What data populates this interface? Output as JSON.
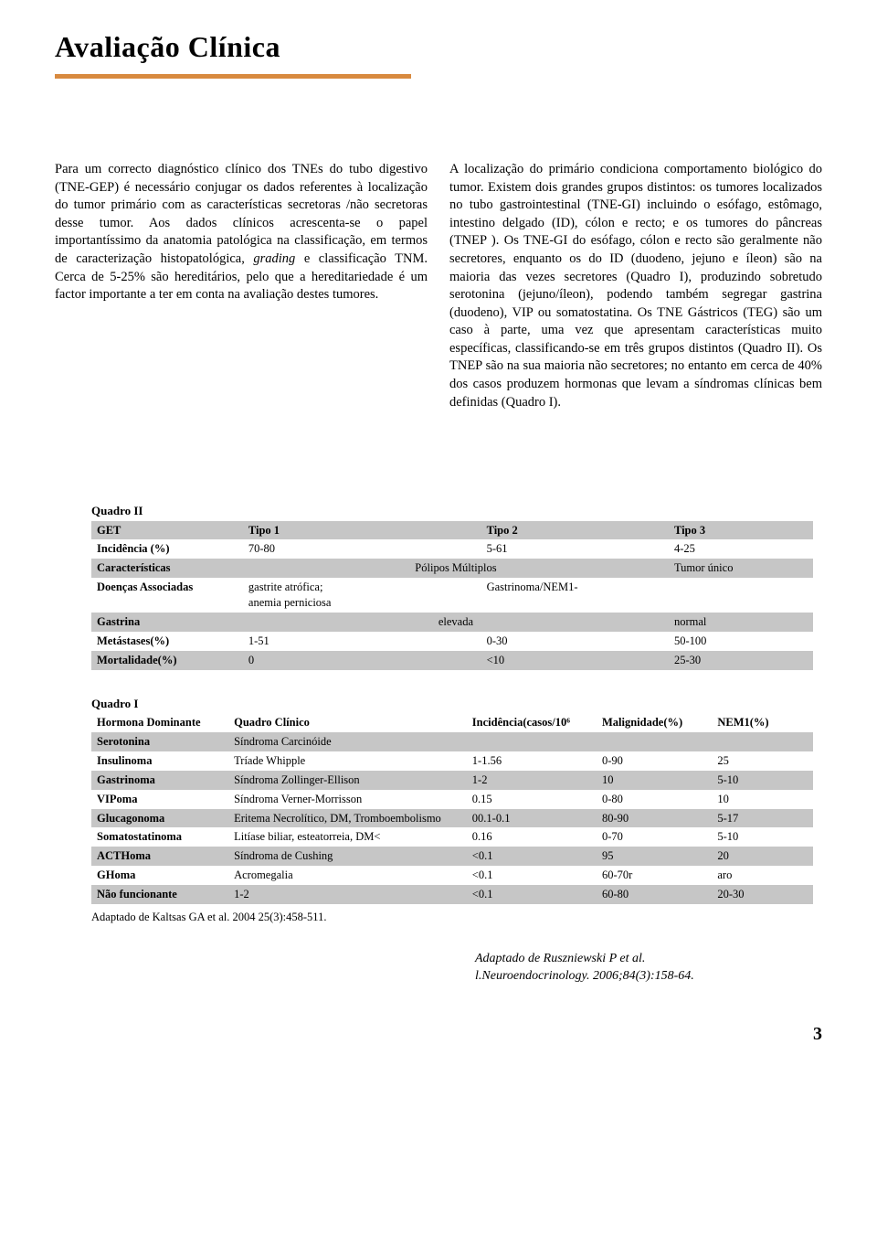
{
  "title": "Avaliação Clínica",
  "title_rule_color": "#d88a3f",
  "col_left": "Para um correcto diagnóstico clínico dos TNEs do tubo digestivo (TNE-GEP) é necessário conjugar os dados referentes à localização do tumor primário com as características secretoras /não secretoras desse tumor. Aos dados clínicos acrescenta-se o papel importantíssimo da anatomia patológica na classificação, em termos de caracterização histopatológica, grading e classificação TNM. Cerca de 5-25% são hereditários, pelo que a hereditariedade é um factor importante a ter em conta na avaliação destes tumores.",
  "col_right": "A localização do primário condiciona comportamento biológico do tumor. Existem dois grandes grupos distintos: os tumores localizados no tubo gastrointestinal (TNE-GI) incluindo o esófago, estômago, intestino delgado (ID), cólon e recto; e os tumores do pâncreas (TNEP ). Os TNE-GI do esófago, cólon e recto são geralmente não secretores, enquanto os do ID (duodeno, jejuno e íleon) são na maioria das vezes secretores (Quadro I), produzindo sobretudo serotonina (jejuno/íleon), podendo também segregar gastrina (duodeno), VIP ou somatostatina. Os TNE Gástricos (TEG) são um caso à parte, uma vez que apresentam características muito específicas, classificando-se em três grupos distintos (Quadro II). Os TNEP são na sua maioria não secretores; no entanto em cerca de 40% dos casos produzem hormonas que levam a síndromas clínicas bem definidas (Quadro I).",
  "quadro2": {
    "caption": "Quadro II",
    "header": [
      "GET",
      "Tipo 1",
      "Tipo 2",
      "Tipo 3"
    ],
    "rows": [
      {
        "shade": false,
        "cells": [
          "Incidência (%)",
          "70-80",
          "5-61",
          "4-25"
        ]
      },
      {
        "shade": true,
        "cells": [
          "Características",
          "Pólipos Múltiplos",
          "",
          "Tumor único"
        ],
        "span2": true
      },
      {
        "shade": false,
        "cells": [
          "Doenças Associadas",
          "gastrite atrófica;\nanemia perniciosa",
          "Gastrinoma/NEM1-",
          ""
        ]
      },
      {
        "shade": true,
        "cells": [
          "Gastrina",
          "elevada",
          "",
          "normal"
        ],
        "span2": true
      },
      {
        "shade": false,
        "cells": [
          "Metástases(%)",
          "1-51",
          "0-30",
          "50-100"
        ]
      },
      {
        "shade": true,
        "cells": [
          "Mortalidade(%)",
          "0",
          "<10",
          "25-30"
        ]
      }
    ]
  },
  "quadro1": {
    "caption": "Quadro I",
    "header": [
      "Hormona Dominante",
      "Quadro Clínico",
      "Incidência(casos/10⁶",
      "Malignidade(%)",
      "NEM1(%)"
    ],
    "rows": [
      {
        "shade": true,
        "cells": [
          "Serotonina",
          "Síndroma Carcinóide",
          "",
          "",
          ""
        ]
      },
      {
        "shade": false,
        "cells": [
          "Insulinoma",
          "Tríade Whipple",
          "1-1.56",
          "0-90",
          "25"
        ]
      },
      {
        "shade": true,
        "cells": [
          "Gastrinoma",
          "Síndroma Zollinger-Ellison",
          "1-2",
          "10",
          "5-10"
        ]
      },
      {
        "shade": false,
        "cells": [
          "VIPoma",
          "Síndroma Verner-Morrisson",
          "0.15",
          "0-80",
          "10"
        ]
      },
      {
        "shade": true,
        "cells": [
          "Glucagonoma",
          "Eritema Necrolítico, DM, Tromboembolismo",
          "00.1-0.1",
          "80-90",
          "5-17"
        ]
      },
      {
        "shade": false,
        "cells": [
          "Somatostatinoma",
          "Litíase biliar, esteatorreia, DM<",
          "0.16",
          "0-70",
          "5-10"
        ]
      },
      {
        "shade": true,
        "cells": [
          "ACTHoma",
          "Síndroma de Cushing",
          "<0.1",
          "95",
          "20"
        ]
      },
      {
        "shade": false,
        "cells": [
          "GHoma",
          "Acromegalia",
          "<0.1",
          "60-70r",
          "aro"
        ]
      },
      {
        "shade": true,
        "cells": [
          "Não funcionante",
          "1-2",
          "<0.1",
          "60-80",
          "20-30"
        ]
      }
    ],
    "footnote": "Adaptado de Kaltsas GA et al. 2004 25(3):458-511."
  },
  "citation": "Adaptado de Ruszniewski P et al.\nl.Neuroendocrinology. 2006;84(3):158-64.",
  "page_number": "3",
  "colors": {
    "row_shade": "#c6c6c6",
    "text": "#000000",
    "background": "#ffffff"
  }
}
